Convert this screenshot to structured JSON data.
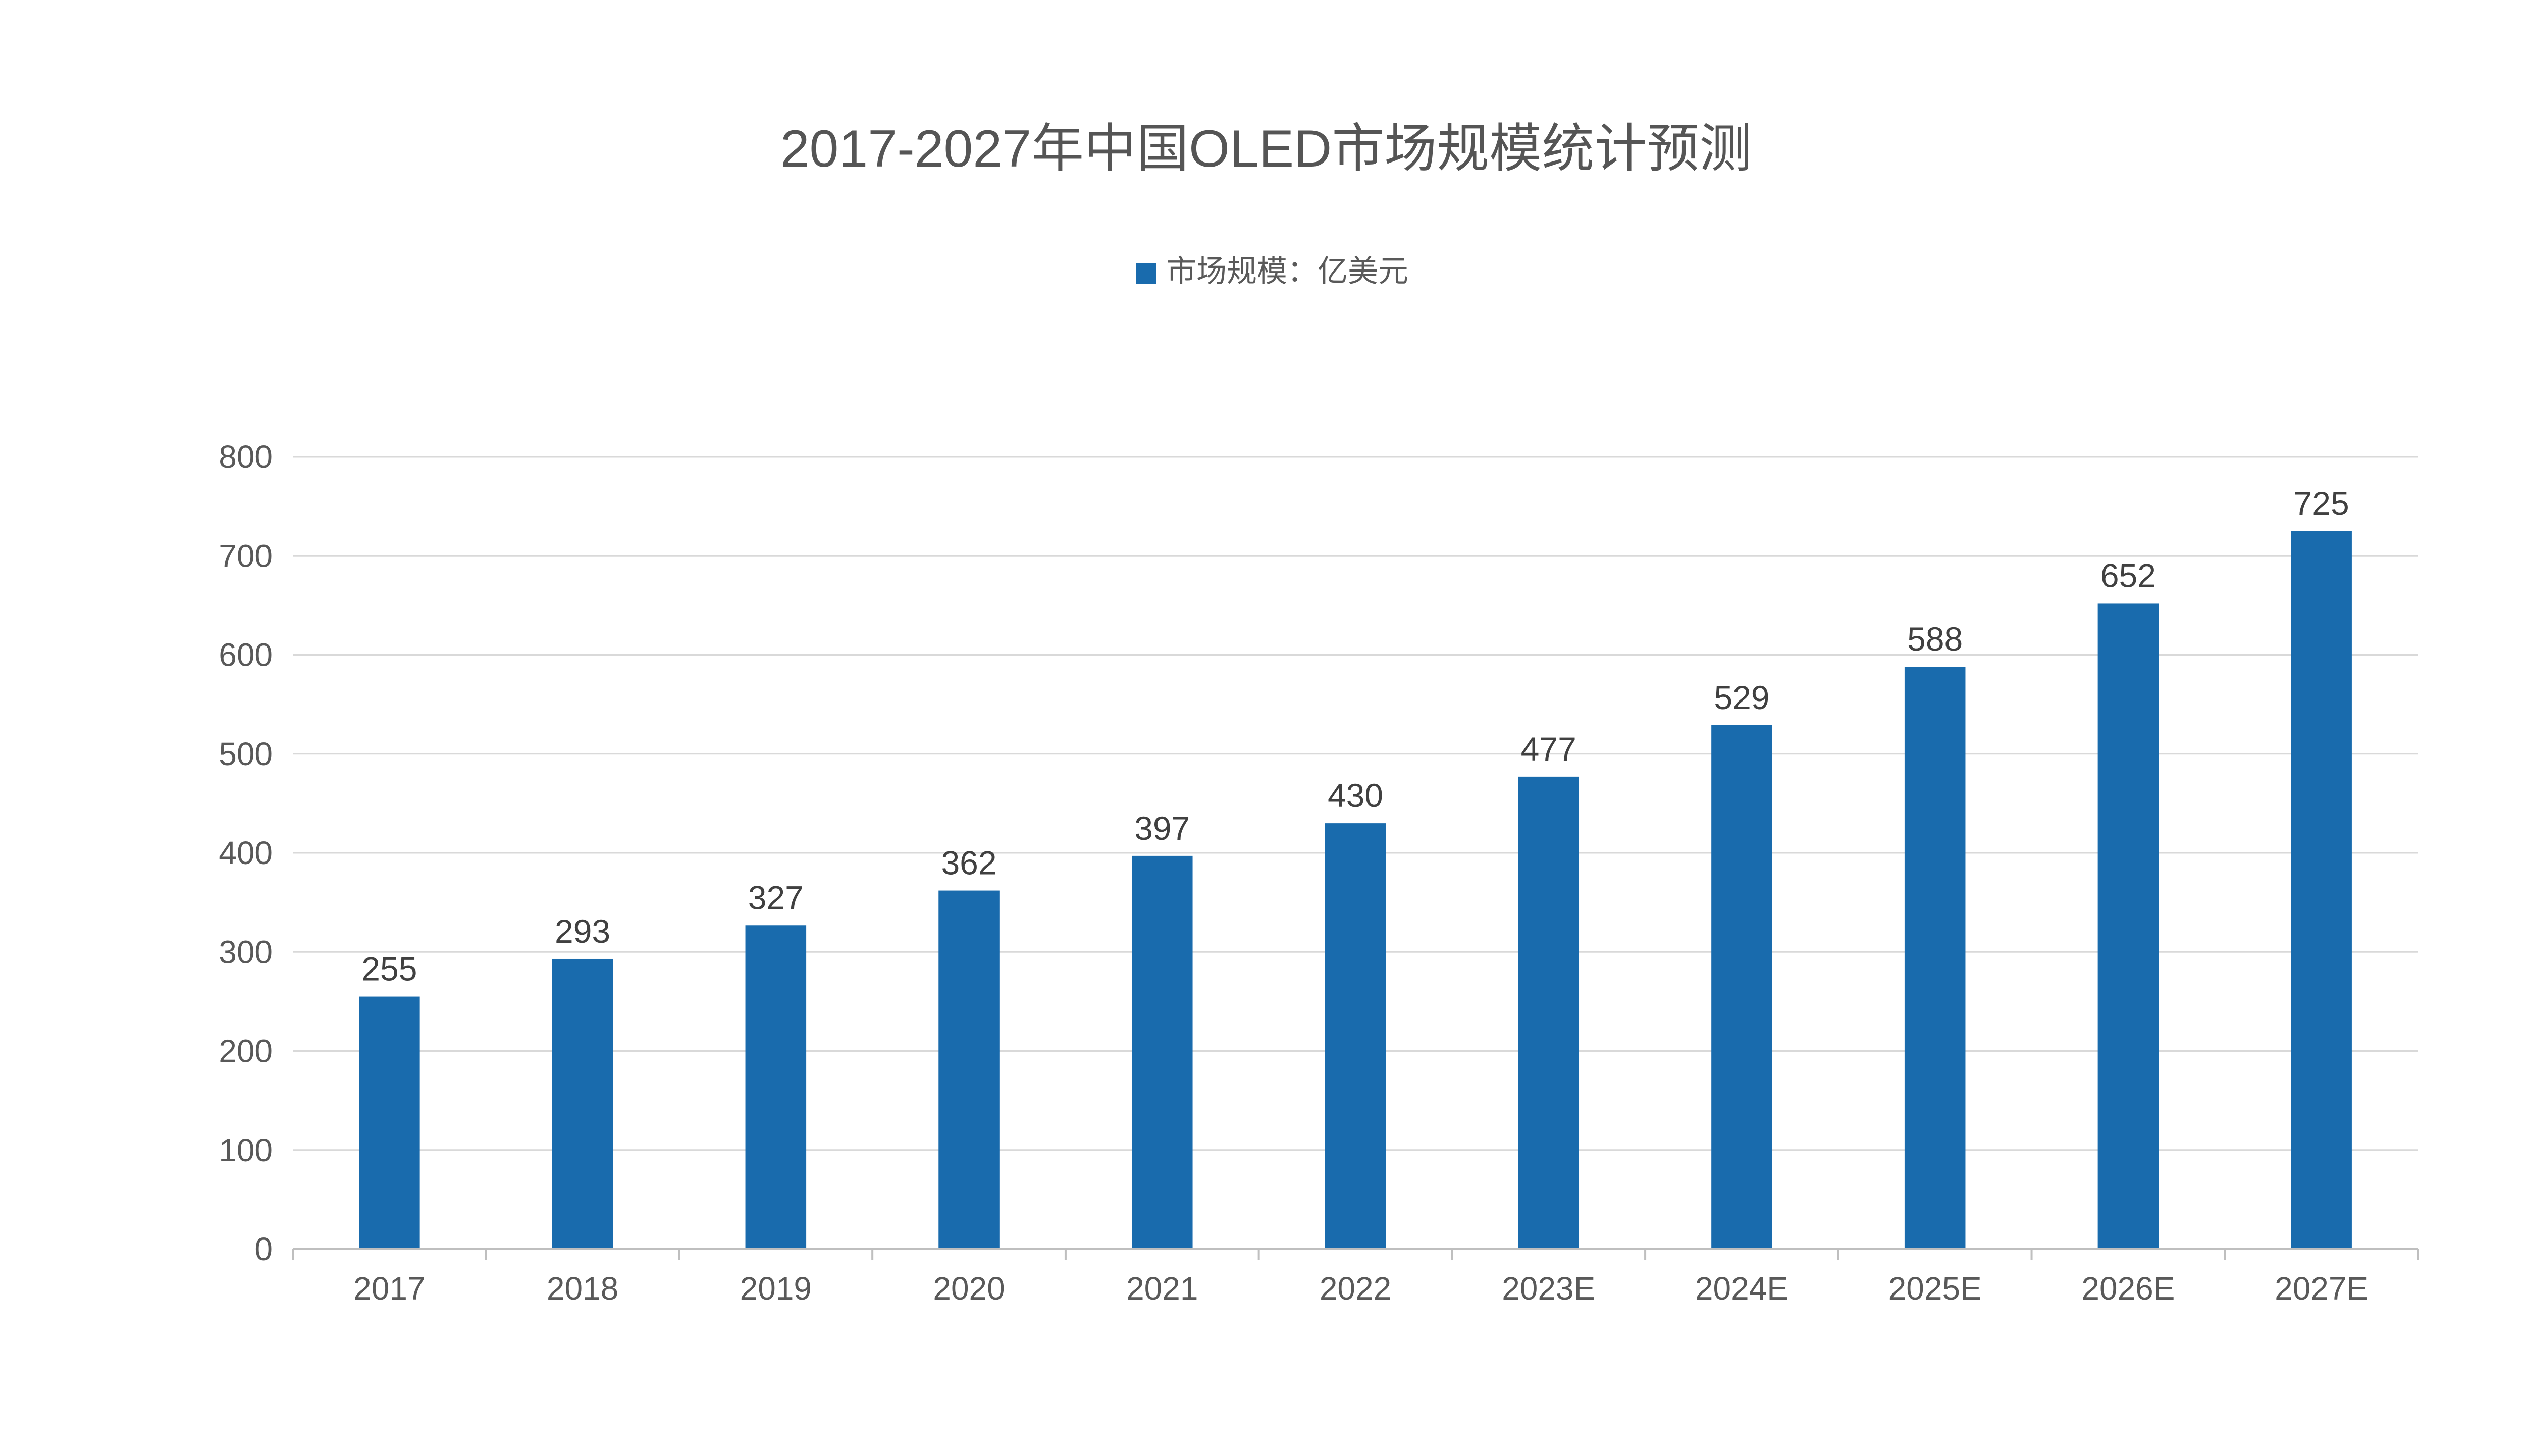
{
  "chart_data": {
    "type": "bar",
    "title": "2017-2027年中国OLED市场规模统计预测",
    "categories": [
      "2017",
      "2018",
      "2019",
      "2020",
      "2021",
      "2022",
      "2023E",
      "2024E",
      "2025E",
      "2026E",
      "2027E"
    ],
    "series": [
      {
        "name": "市场规模：亿美元",
        "values": [
          255,
          293,
          327,
          362,
          397,
          430,
          477,
          529,
          588,
          652,
          725
        ]
      }
    ],
    "ylim": [
      0,
      800
    ],
    "yticks": [
      0,
      100,
      200,
      300,
      400,
      500,
      600,
      700,
      800
    ],
    "data_labels": true,
    "grid": true,
    "legend_position": "top-center",
    "colors": {
      "bar": "#196BAD",
      "title": "#555555",
      "text": "#595959",
      "label": "#404040",
      "grid": "#D9D9D9",
      "axis": "#BFBFBF"
    }
  }
}
